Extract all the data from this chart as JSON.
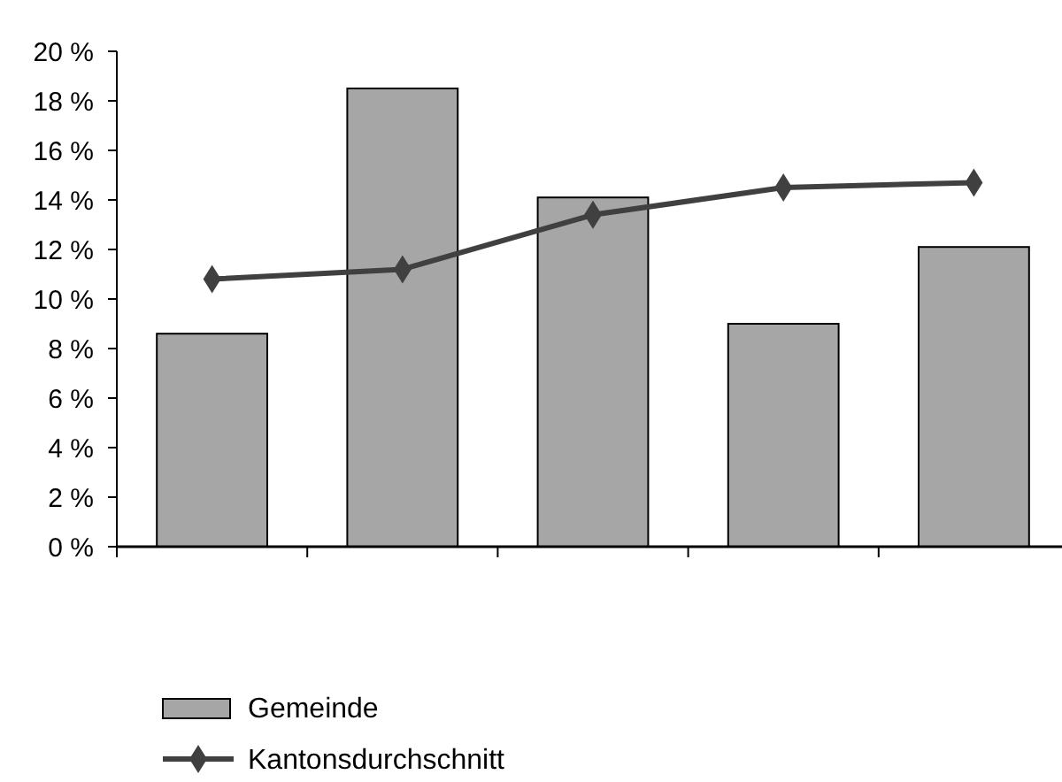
{
  "chart_data": {
    "type": "bar",
    "categories": [
      null,
      null,
      null,
      null,
      null
    ],
    "series": [
      {
        "name": "Gemeinde",
        "color": "#a6a6a6",
        "values": [
          8.6,
          18.5,
          14.1,
          9.0,
          12.1
        ]
      },
      {
        "name": "Kantonsdurchschnitt",
        "type": "line",
        "color": "#404040",
        "values": [
          10.8,
          11.2,
          13.4,
          14.5,
          14.7
        ],
        "marker": "diamond"
      }
    ],
    "ylim": [
      0,
      20
    ],
    "yticks": [
      {
        "value": 0,
        "label": "0 %"
      },
      {
        "value": 2,
        "label": "2 %"
      },
      {
        "value": 4,
        "label": "4 %"
      },
      {
        "value": 6,
        "label": "6 %"
      },
      {
        "value": 8,
        "label": "8 %"
      },
      {
        "value": 10,
        "label": "10 %"
      },
      {
        "value": 12,
        "label": "12 %"
      },
      {
        "value": 14,
        "label": "14 %"
      },
      {
        "value": 16,
        "label": "16 %"
      },
      {
        "value": 18,
        "label": "18 %"
      },
      {
        "value": 20,
        "label": "20 %"
      }
    ],
    "grid": false,
    "legend": "bottom"
  }
}
